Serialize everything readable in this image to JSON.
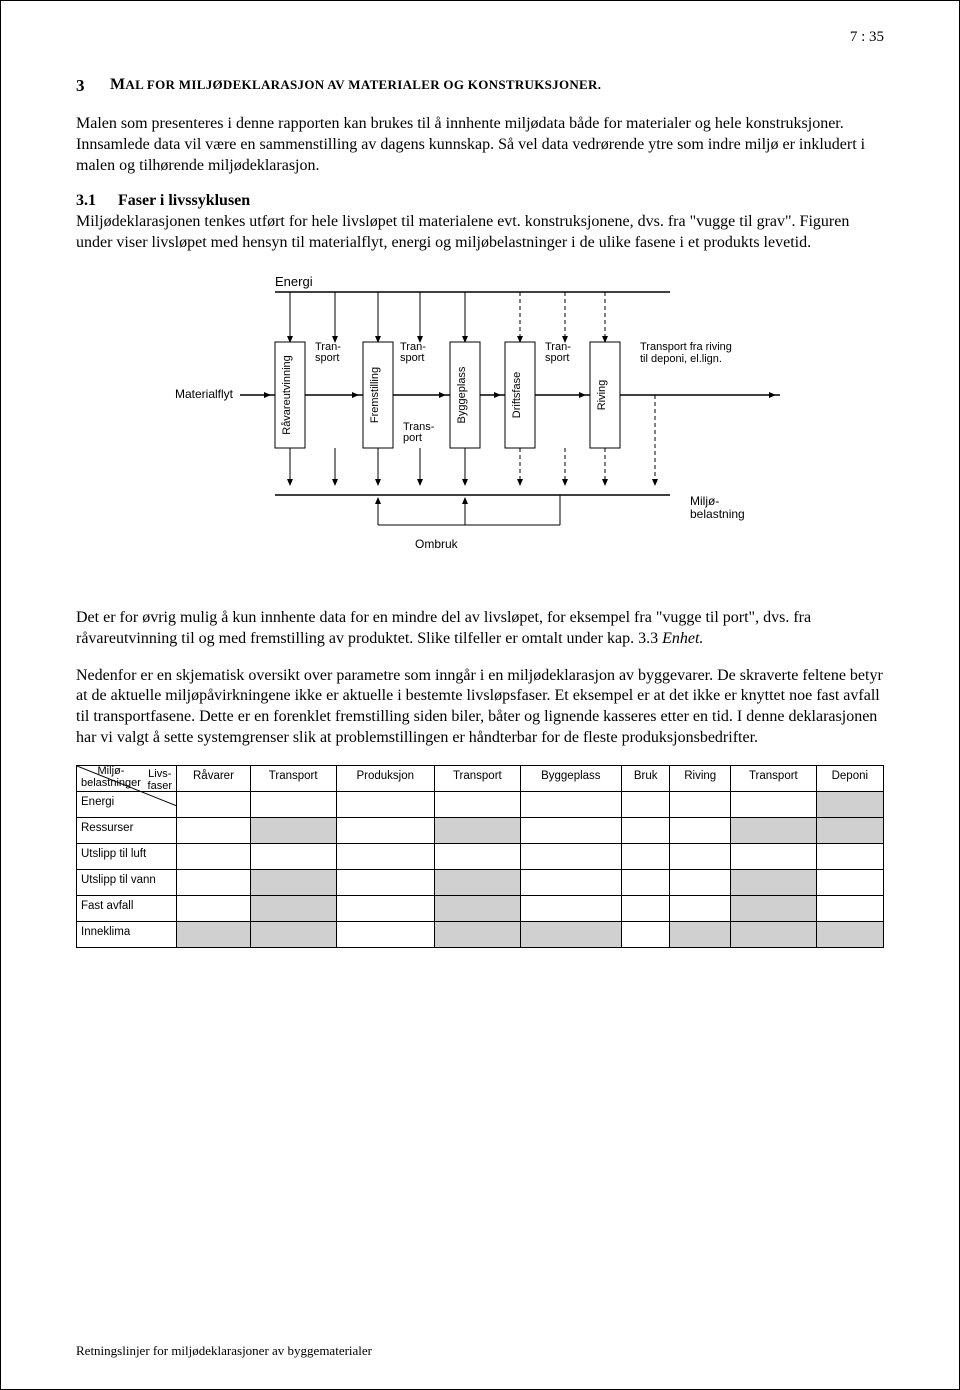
{
  "page_number": "7 : 35",
  "heading": {
    "number": "3",
    "title_lead": "M",
    "title_rest": "AL FOR MILJØDEKLARASJON AV MATERIALER OG KONSTRUKSJONER."
  },
  "para1": "Malen som presenteres i denne rapporten kan brukes til å innhente miljødata både for materialer og hele konstruksjoner. Innsamlede data vil være en sammenstilling av dagens kunnskap. Så vel data vedrørende ytre som indre miljø er inkludert i malen og tilhørende miljødeklarasjon.",
  "sub1": {
    "number": "3.1",
    "title": "Faser i livssyklusen"
  },
  "para2": "Miljødeklarasjonen tenkes utført for hele livsløpet til materialene evt. konstruksjonene, dvs. fra \"vugge til grav\". Figuren under viser livsløpet med hensyn til materialflyt, energi og miljøbelastninger i de ulike fasene i et produkts levetid.",
  "diagram": {
    "energi": "Energi",
    "materialflyt": "Materialflyt",
    "boxes": [
      "Råvareutvinning",
      "Fremstilling",
      "Byggeplass",
      "Driftsfase",
      "Riving"
    ],
    "trans_top": "Tran-\nsport",
    "trans_bottom": "Trans-\nport",
    "transport_deponi": "Transport fra riving\ntil deponi, el.lign.",
    "ombruk": "Ombruk",
    "miljobelastning": "Miljø-\nbelastning"
  },
  "para3a": "Det er for øvrig mulig å kun innhente data for en mindre del av livsløpet, for eksempel fra \"vugge til port\", dvs. fra råvareutvinning til og med fremstilling av produktet. Slike tilfeller er omtalt under kap. 3.3 ",
  "para3b": "Enhet.",
  "para4": "Nedenfor er en skjematisk oversikt over parametre som inngår i en miljødeklarasjon av byggevarer. De skraverte feltene betyr at de aktuelle miljøpåvirkningene ikke er aktuelle i bestemte livsløpsfaser. Et eksempel er at det ikke er knyttet noe fast avfall til transportfasene. Dette er en forenklet fremstilling siden biler, båter og lignende kasseres etter en tid. I denne deklarasjonen har vi valgt å sette systemgrenser slik at problemstillingen er håndterbar for de fleste produksjonsbedrifter.",
  "table": {
    "corner_top": "Livs-\nfaser",
    "corner_bottom": "Miljø-\nbelastninger",
    "columns": [
      "Råvarer",
      "Transport",
      "Produksjon",
      "Transport",
      "Byggeplass",
      "Bruk",
      "Riving",
      "Transport",
      "Deponi"
    ],
    "rows": [
      {
        "label": "Energi",
        "shaded": [
          false,
          false,
          false,
          false,
          false,
          false,
          false,
          false,
          true
        ]
      },
      {
        "label": "Ressurser",
        "shaded": [
          false,
          true,
          false,
          true,
          false,
          false,
          false,
          true,
          true
        ]
      },
      {
        "label": "Utslipp til luft",
        "shaded": [
          false,
          false,
          false,
          false,
          false,
          false,
          false,
          false,
          false
        ]
      },
      {
        "label": "Utslipp til vann",
        "shaded": [
          false,
          true,
          false,
          true,
          false,
          false,
          false,
          true,
          false
        ]
      },
      {
        "label": "Fast avfall",
        "shaded": [
          false,
          true,
          false,
          true,
          false,
          false,
          false,
          true,
          false
        ]
      },
      {
        "label": "Inneklima",
        "shaded": [
          true,
          true,
          false,
          true,
          true,
          false,
          true,
          true,
          true
        ]
      }
    ],
    "shaded_color": "#d0d0d0"
  },
  "footer": "Retningslinjer for miljødeklarasjoner av byggematerialer"
}
